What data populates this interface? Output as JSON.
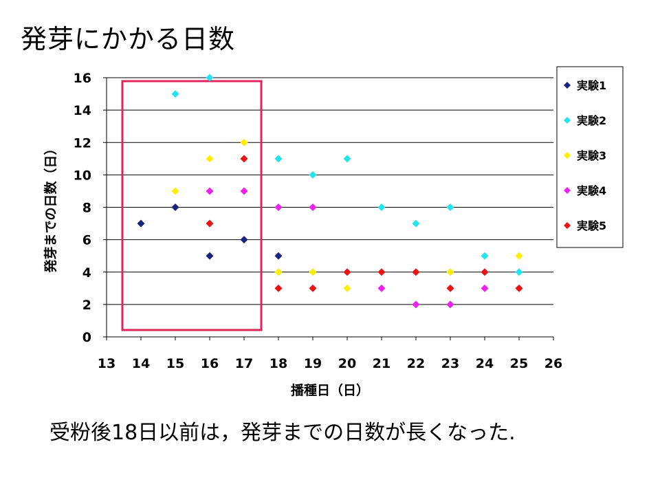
{
  "slide": {
    "title": "発芽にかかる日数",
    "caption": "受粉後18日以前は，発芽までの日数が長くなった."
  },
  "chart_data": {
    "type": "scatter",
    "xlabel": "播種日（日）",
    "ylabel": "発芽までの日数（日）",
    "xlim": [
      13,
      26
    ],
    "ylim": [
      0,
      16
    ],
    "x_ticks": [
      13,
      14,
      15,
      16,
      17,
      18,
      19,
      20,
      21,
      22,
      23,
      24,
      25,
      26
    ],
    "y_ticks": [
      0,
      2,
      4,
      6,
      8,
      10,
      12,
      14,
      16
    ],
    "grid": "horizontal",
    "legend_position": "right",
    "highlight_region": {
      "x_range": [
        13.5,
        17.5
      ],
      "color": "#e0245e"
    },
    "series": [
      {
        "name": "実験1",
        "color": "#1a237e",
        "points": [
          [
            14,
            7
          ],
          [
            15,
            8
          ],
          [
            16,
            5
          ],
          [
            17,
            6
          ],
          [
            18,
            5
          ]
        ]
      },
      {
        "name": "実験2",
        "color": "#22e4ee",
        "points": [
          [
            15,
            15
          ],
          [
            16,
            16
          ],
          [
            18,
            11
          ],
          [
            19,
            10
          ],
          [
            20,
            11
          ],
          [
            21,
            8
          ],
          [
            22,
            7
          ],
          [
            23,
            8
          ],
          [
            24,
            5
          ],
          [
            25,
            4
          ]
        ]
      },
      {
        "name": "実験3",
        "color": "#ffee00",
        "points": [
          [
            15,
            9
          ],
          [
            16,
            11
          ],
          [
            17,
            12
          ],
          [
            18,
            4
          ],
          [
            19,
            4
          ],
          [
            20,
            3
          ],
          [
            23,
            4
          ],
          [
            25,
            5
          ]
        ]
      },
      {
        "name": "実験4",
        "color": "#ee22ee",
        "points": [
          [
            16,
            9
          ],
          [
            17,
            9
          ],
          [
            18,
            8
          ],
          [
            19,
            8
          ],
          [
            21,
            3
          ],
          [
            22,
            2
          ],
          [
            23,
            2
          ],
          [
            24,
            3
          ]
        ]
      },
      {
        "name": "実験5",
        "color": "#ee1111",
        "points": [
          [
            16,
            7
          ],
          [
            17,
            11
          ],
          [
            18,
            3
          ],
          [
            19,
            3
          ],
          [
            20,
            4
          ],
          [
            21,
            4
          ],
          [
            22,
            4
          ],
          [
            23,
            3
          ],
          [
            24,
            4
          ],
          [
            25,
            3
          ]
        ]
      }
    ]
  }
}
